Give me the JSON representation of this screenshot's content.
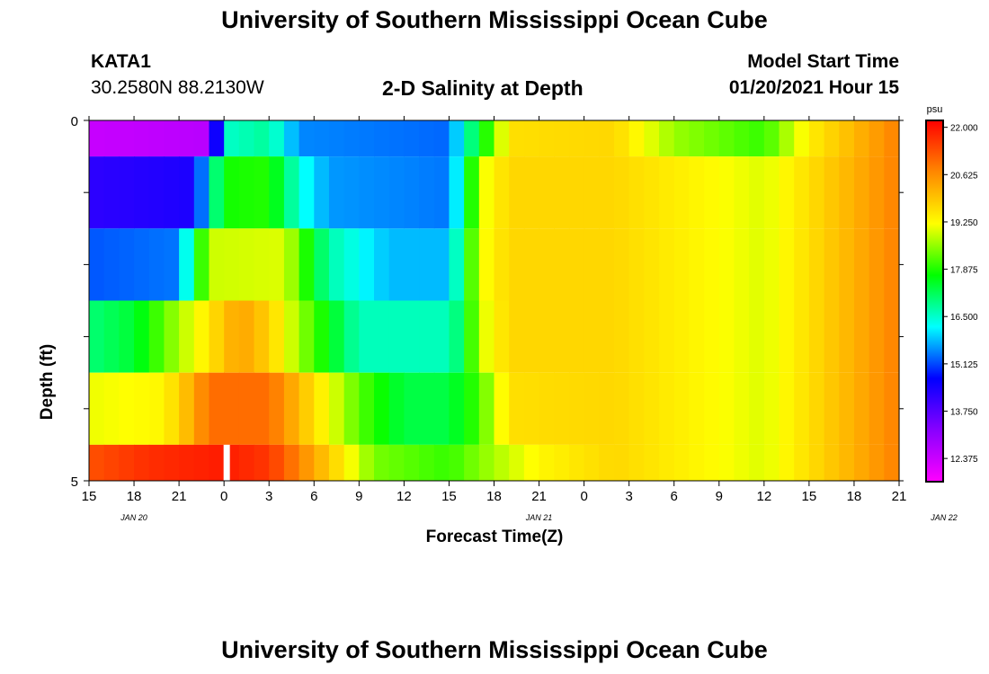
{
  "page": {
    "title_top": "University of Southern Mississippi Ocean Cube",
    "title_bottom": "University of Southern Mississippi Ocean Cube",
    "station_id": "KATA1",
    "station_coords": "30.2580N 88.2130W",
    "plot_title": "2-D Salinity at Depth",
    "model_start_label": "Model Start Time",
    "model_start_value": "01/20/2021 Hour 15"
  },
  "chart_data": {
    "type": "heatmap",
    "title": "2-D Salinity at Depth",
    "xlabel": "Forecast Time(Z)",
    "ylabel": "Depth (ft)",
    "ylim": [
      0,
      5
    ],
    "y_tick_labels": [
      "0",
      "5"
    ],
    "x_tick_labels": [
      "15",
      "18",
      "21",
      "0",
      "3",
      "6",
      "9",
      "12",
      "15",
      "18",
      "21",
      "0",
      "3",
      "6",
      "9",
      "12",
      "15",
      "18",
      "21"
    ],
    "x_date_labels": [
      {
        "label": "JAN 20",
        "hour_index": 3
      },
      {
        "label": "JAN 21",
        "hour_index": 30
      },
      {
        "label": "JAN 22",
        "hour_index": 57
      }
    ],
    "x_range_hours": [
      0,
      54
    ],
    "colorbar": {
      "unit": "psu",
      "range": [
        11.7,
        22.2
      ],
      "tick_values": [
        22.0,
        20.625,
        19.25,
        17.875,
        16.5,
        15.125,
        13.75,
        12.375
      ],
      "tick_labels": [
        "22.000",
        "20.625",
        "19.250",
        "17.875",
        "16.500",
        "15.125",
        "13.750",
        "12.375"
      ],
      "colors": [
        "#ff00ff",
        "#8800ff",
        "#0000ff",
        "#00ffff",
        "#00ff00",
        "#ffff00",
        "#ff8800",
        "#ff0000"
      ]
    },
    "rows": [
      {
        "depth_from": 0.0,
        "depth_to": 0.5,
        "keys": [
          [
            0,
            12.4
          ],
          [
            8,
            12.6
          ],
          [
            9,
            16.5
          ],
          [
            12,
            16.8
          ],
          [
            14,
            15.5
          ],
          [
            24,
            15.3
          ],
          [
            25,
            16.5
          ],
          [
            27,
            18.4
          ],
          [
            28,
            19.6
          ],
          [
            35,
            19.7
          ],
          [
            39,
            18.6
          ],
          [
            45,
            18.0
          ],
          [
            48,
            19.4
          ],
          [
            54,
            20.8
          ]
        ]
      },
      {
        "depth_from": 0.5,
        "depth_to": 1.5,
        "keys": [
          [
            0,
            14.2
          ],
          [
            7,
            14.4
          ],
          [
            8,
            16.3
          ],
          [
            9,
            17.8
          ],
          [
            12,
            17.9
          ],
          [
            14,
            16.4
          ],
          [
            16,
            15.6
          ],
          [
            24,
            15.4
          ],
          [
            25,
            16.8
          ],
          [
            26,
            19.0
          ],
          [
            28,
            19.7
          ],
          [
            35,
            19.7
          ],
          [
            45,
            19.0
          ],
          [
            48,
            19.6
          ],
          [
            54,
            20.8
          ]
        ]
      },
      {
        "depth_from": 1.5,
        "depth_to": 2.5,
        "keys": [
          [
            0,
            15.2
          ],
          [
            6,
            15.4
          ],
          [
            7,
            17.2
          ],
          [
            8,
            18.9
          ],
          [
            13,
            19.0
          ],
          [
            16,
            16.7
          ],
          [
            20,
            15.8
          ],
          [
            24,
            15.8
          ],
          [
            25,
            17.3
          ],
          [
            26,
            19.1
          ],
          [
            28,
            19.7
          ],
          [
            35,
            19.7
          ],
          [
            45,
            19.0
          ],
          [
            48,
            19.6
          ],
          [
            54,
            20.8
          ]
        ]
      },
      {
        "depth_from": 2.5,
        "depth_to": 3.5,
        "keys": [
          [
            0,
            17.0
          ],
          [
            3,
            17.4
          ],
          [
            6,
            18.7
          ],
          [
            8,
            19.5
          ],
          [
            10,
            20.4
          ],
          [
            12,
            19.8
          ],
          [
            14,
            18.6
          ],
          [
            18,
            16.6
          ],
          [
            24,
            16.6
          ],
          [
            25,
            17.3
          ],
          [
            26,
            18.9
          ],
          [
            28,
            19.7
          ],
          [
            35,
            19.7
          ],
          [
            45,
            19.0
          ],
          [
            48,
            19.6
          ],
          [
            54,
            20.8
          ]
        ]
      },
      {
        "depth_from": 3.5,
        "depth_to": 4.5,
        "keys": [
          [
            0,
            19.1
          ],
          [
            5,
            19.3
          ],
          [
            7,
            20.3
          ],
          [
            8,
            21.0
          ],
          [
            12,
            21.0
          ],
          [
            15,
            19.6
          ],
          [
            18,
            18.2
          ],
          [
            21,
            17.3
          ],
          [
            24,
            17.3
          ],
          [
            26,
            18.1
          ],
          [
            28,
            19.6
          ],
          [
            35,
            19.7
          ],
          [
            45,
            19.0
          ],
          [
            48,
            19.6
          ],
          [
            54,
            20.8
          ]
        ]
      },
      {
        "depth_from": 4.5,
        "depth_to": 5.0,
        "keys": [
          [
            0,
            21.3
          ],
          [
            4,
            21.7
          ],
          [
            9,
            21.9
          ],
          [
            12,
            21.6
          ],
          [
            15,
            20.3
          ],
          [
            17,
            19.4
          ],
          [
            19,
            18.4
          ],
          [
            24,
            18.0
          ],
          [
            27,
            18.7
          ],
          [
            30,
            19.3
          ],
          [
            35,
            19.7
          ],
          [
            45,
            19.0
          ],
          [
            48,
            19.6
          ],
          [
            54,
            20.8
          ]
        ]
      }
    ],
    "gap_hour": 9
  }
}
